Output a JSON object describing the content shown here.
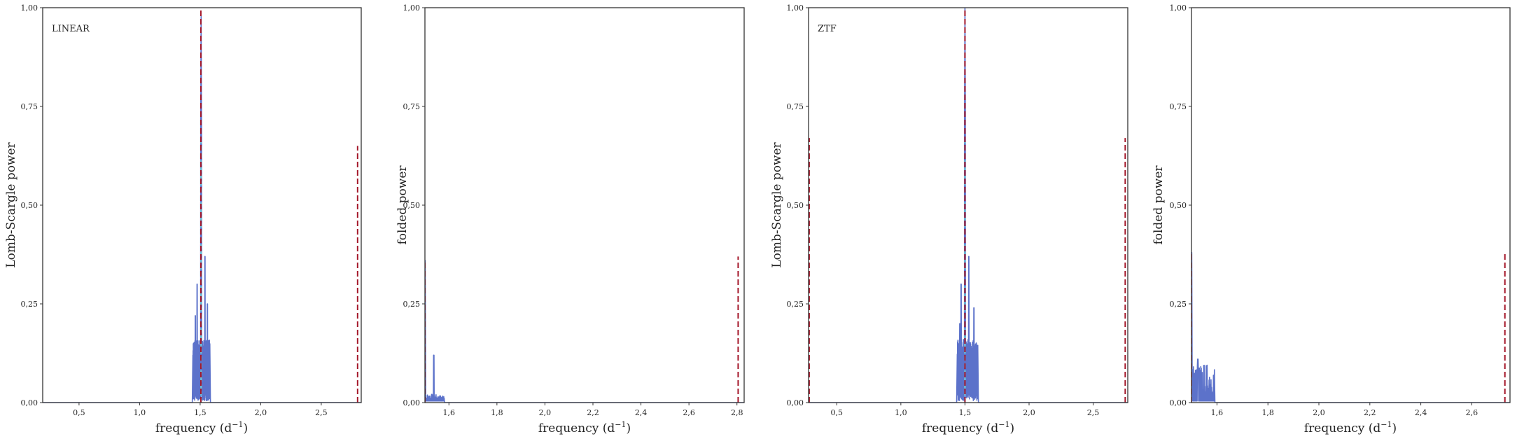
{
  "colors": {
    "series": "#4a63c4",
    "median": "#6fc6d8",
    "marker": "#a4182a",
    "frame": "#333333"
  },
  "chart_data": [
    {
      "type": "line",
      "panel_label": "LINEAR",
      "xlabel": "frequency (d",
      "xlabel_sup": "−1",
      "xlabel_suffix": ")",
      "ylabel": "Lomb-Scargle power",
      "xlim": [
        0.2,
        2.83
      ],
      "ylim": [
        0,
        1
      ],
      "xticks": [
        0.5,
        1.0,
        1.5,
        2.0,
        2.5
      ],
      "xtick_labels": [
        "0,5",
        "1,0",
        "1,5",
        "2,0",
        "2,5"
      ],
      "yticks": [
        0,
        0.25,
        0.5,
        0.75,
        1.0
      ],
      "ytick_labels": [
        "0,00",
        "0,25",
        "0,50",
        "0,75",
        "1,00"
      ],
      "peak": {
        "center": 1.508,
        "height": 1.0,
        "band": [
          1.44,
          1.58
        ],
        "envelope": 0.16
      },
      "sidelobes": [
        [
          1.475,
          0.3
        ],
        [
          1.54,
          0.37
        ],
        [
          1.46,
          0.22
        ],
        [
          1.56,
          0.25
        ]
      ],
      "markers": [
        {
          "x": 1.506,
          "y": 1.0
        },
        {
          "x": 2.8,
          "y": 0.65
        }
      ]
    },
    {
      "type": "line",
      "panel_label": "",
      "xlabel": "frequency (d",
      "xlabel_sup": "−1",
      "xlabel_suffix": ")",
      "ylabel": "folded power",
      "xlim": [
        1.5,
        2.83
      ],
      "ylim": [
        0,
        1
      ],
      "xticks": [
        1.6,
        1.8,
        2.0,
        2.2,
        2.4,
        2.6,
        2.8
      ],
      "xtick_labels": [
        "1,6",
        "1,8",
        "2,0",
        "2,2",
        "2,4",
        "2,6",
        "2,8"
      ],
      "yticks": [
        0,
        0.25,
        0.5,
        0.75,
        1.0
      ],
      "ytick_labels": [
        "0,00",
        "0,25",
        "0,50",
        "0,75",
        "1,00"
      ],
      "folded": {
        "start": 1.5,
        "spike": 0.36,
        "secondary": [
          1.537,
          0.12
        ],
        "tail_end": 1.58,
        "tail_level": 0.015
      },
      "markers": [
        {
          "x": 1.5,
          "y": 0.36
        },
        {
          "x": 2.805,
          "y": 0.37
        }
      ]
    },
    {
      "type": "line",
      "panel_label": "ZTF",
      "xlabel": "frequency (d",
      "xlabel_sup": "−1",
      "xlabel_suffix": ")",
      "ylabel": "Lomb-Scargle power",
      "xlim": [
        0.28,
        2.77
      ],
      "ylim": [
        0,
        1
      ],
      "xticks": [
        0.5,
        1.0,
        1.5,
        2.0,
        2.5
      ],
      "xtick_labels": [
        "0,5",
        "1,0",
        "1,5",
        "2,0",
        "2,5"
      ],
      "yticks": [
        0,
        0.25,
        0.5,
        0.75,
        1.0
      ],
      "ytick_labels": [
        "0,00",
        "0,25",
        "0,50",
        "0,75",
        "1,00"
      ],
      "peak": {
        "center": 1.5,
        "height": 1.0,
        "band": [
          1.44,
          1.6
        ],
        "envelope": 0.16
      },
      "sidelobes": [
        [
          1.47,
          0.3
        ],
        [
          1.53,
          0.37
        ],
        [
          1.46,
          0.2
        ],
        [
          1.57,
          0.24
        ]
      ],
      "markers": [
        {
          "x": 1.5,
          "y": 1.0
        },
        {
          "x": 2.75,
          "y": 0.67
        },
        {
          "x": 0.285,
          "y": 0.67
        }
      ]
    },
    {
      "type": "line",
      "panel_label": "",
      "xlabel": "frequency (d",
      "xlabel_sup": "−1",
      "xlabel_suffix": ")",
      "ylabel": "folded power",
      "xlim": [
        1.5,
        2.75
      ],
      "ylim": [
        0,
        1
      ],
      "xticks": [
        1.6,
        1.8,
        2.0,
        2.2,
        2.4,
        2.6
      ],
      "xtick_labels": [
        "1,6",
        "1,8",
        "2,0",
        "2,2",
        "2,4",
        "2,6"
      ],
      "yticks": [
        0,
        0.25,
        0.5,
        0.75,
        1.0
      ],
      "ytick_labels": [
        "0,00",
        "0,25",
        "0,50",
        "0,75",
        "1,00"
      ],
      "folded": {
        "start": 1.5,
        "spike": 0.38,
        "secondary": [
          1.525,
          0.11
        ],
        "tail_end": 1.59,
        "tail_level": 0.07
      },
      "markers": [
        {
          "x": 1.5,
          "y": 0.38
        },
        {
          "x": 2.73,
          "y": 0.38
        }
      ]
    }
  ]
}
